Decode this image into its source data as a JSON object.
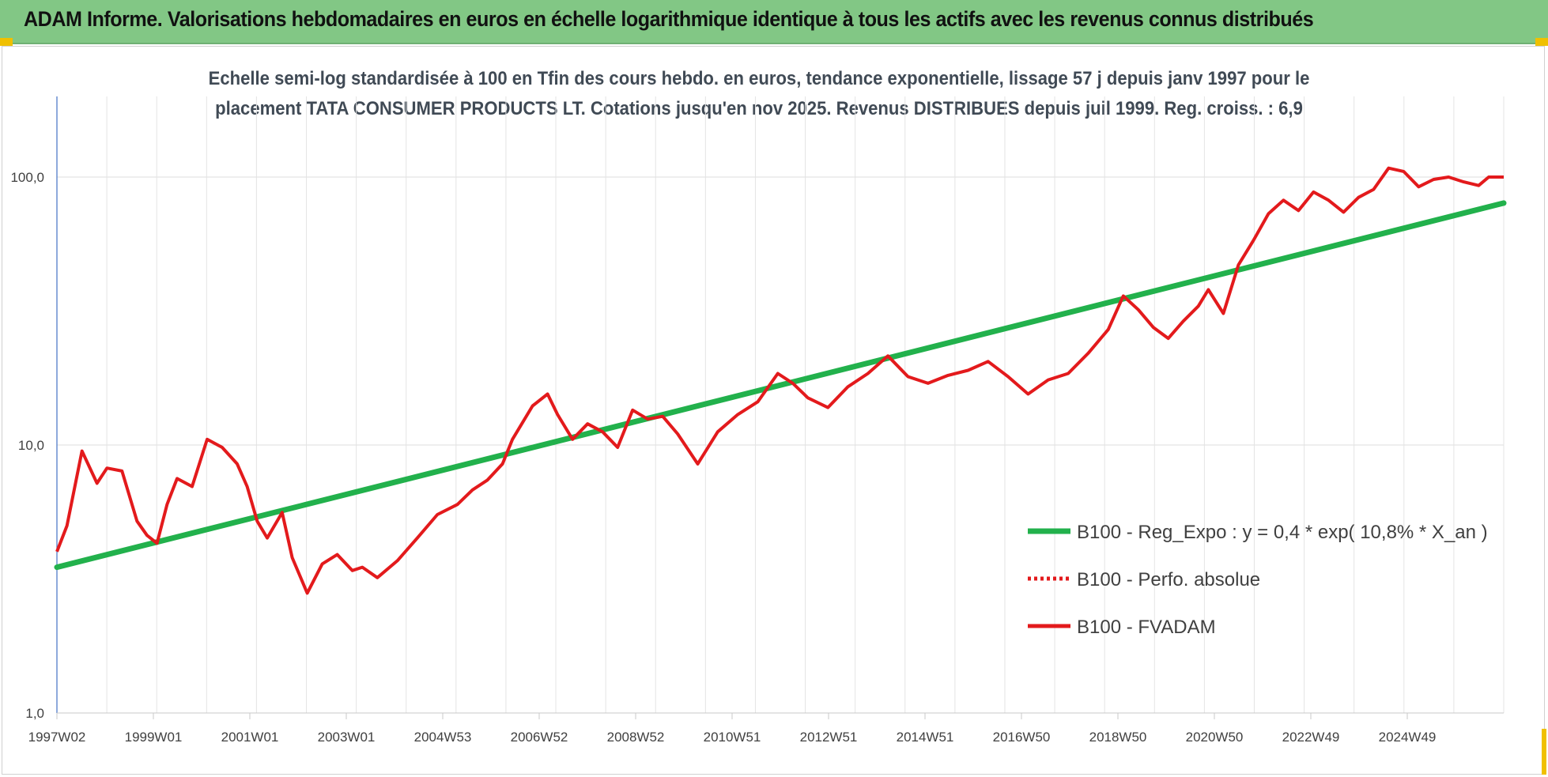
{
  "banner": {
    "title": "ADAM Informe. Valorisations hebdomadaires en euros en échelle logarithmique identique à tous les actifs avec les revenus connus distribués"
  },
  "chart_data": {
    "type": "line",
    "title": "Echelle semi-log standardisée à 100 en Tfin des cours hebdo. en euros, tendance exponentielle, lissage 57 j depuis janv 1997 pour le",
    "subtitle": "placement TATA CONSUMER PRODUCTS LT. Cotations jusqu'en nov 2025. Revenus DISTRIBUES depuis juil 1999. Reg. croiss. : 6,9",
    "xlabel": "",
    "ylabel": "",
    "yscale": "log",
    "ylim": [
      1,
      200
    ],
    "y_ticks": [
      "1,0",
      "10,0",
      "100,0"
    ],
    "x_ticks": [
      "1997W02",
      "1999W01",
      "2001W01",
      "2003W01",
      "2004W53",
      "2006W52",
      "2008W52",
      "2010W51",
      "2012W51",
      "2014W51",
      "2016W50",
      "2018W50",
      "2020W50",
      "2022W49",
      "2024W49"
    ],
    "grid": true,
    "legend_position": "lower-right",
    "series": [
      {
        "name": "B100 - Reg_Expo : y = 0,4 * exp( 10,8% * X_an )",
        "color": "#22b14c",
        "style": "solid",
        "x": [
          1997.0,
          2025.9
        ],
        "y": [
          3.5,
          80
        ]
      },
      {
        "name": "B100 - Perfo. absolue",
        "color": "#e31a1c",
        "style": "dotted",
        "x": [],
        "y": []
      },
      {
        "name": "B100 - FVADAM",
        "color": "#e31a1c",
        "style": "solid",
        "x": [
          1997.0,
          1997.2,
          1997.5,
          1997.8,
          1998.0,
          1998.3,
          1998.6,
          1998.8,
          1999.0,
          1999.2,
          1999.4,
          1999.7,
          2000.0,
          2000.3,
          2000.6,
          2000.8,
          2001.0,
          2001.2,
          2001.5,
          2001.7,
          2002.0,
          2002.3,
          2002.6,
          2002.9,
          2003.1,
          2003.4,
          2003.8,
          2004.2,
          2004.6,
          2005.0,
          2005.3,
          2005.6,
          2005.9,
          2006.1,
          2006.5,
          2006.8,
          2007.0,
          2007.3,
          2007.6,
          2007.9,
          2008.2,
          2008.5,
          2008.8,
          2009.1,
          2009.4,
          2009.8,
          2010.2,
          2010.6,
          2011.0,
          2011.4,
          2011.7,
          2012.0,
          2012.4,
          2012.8,
          2013.2,
          2013.6,
          2014.0,
          2014.4,
          2014.8,
          2015.2,
          2015.6,
          2016.0,
          2016.4,
          2016.8,
          2017.2,
          2017.6,
          2018.0,
          2018.3,
          2018.6,
          2018.9,
          2019.2,
          2019.5,
          2019.8,
          2020.0,
          2020.3,
          2020.6,
          2020.9,
          2021.2,
          2021.5,
          2021.8,
          2022.1,
          2022.4,
          2022.7,
          2023.0,
          2023.3,
          2023.6,
          2023.9,
          2024.2,
          2024.5,
          2024.8,
          2025.1,
          2025.4,
          2025.6,
          2025.9
        ],
        "y": [
          4.0,
          5.0,
          9.5,
          7.2,
          8.2,
          8.0,
          5.2,
          4.6,
          4.3,
          6.0,
          7.5,
          7.0,
          10.5,
          9.8,
          8.5,
          7.0,
          5.2,
          4.5,
          5.6,
          3.8,
          2.8,
          3.6,
          3.9,
          3.4,
          3.5,
          3.2,
          3.7,
          4.5,
          5.5,
          6.0,
          6.8,
          7.4,
          8.5,
          10.5,
          14.0,
          15.5,
          13.0,
          10.5,
          12.0,
          11.2,
          9.8,
          13.5,
          12.5,
          12.8,
          11.0,
          8.5,
          11.2,
          13.0,
          14.5,
          18.5,
          17.0,
          15.0,
          13.8,
          16.5,
          18.5,
          21.5,
          18.0,
          17.0,
          18.2,
          19.0,
          20.5,
          18.0,
          15.5,
          17.5,
          18.5,
          22.0,
          27.0,
          36.0,
          32.0,
          27.5,
          25.0,
          29.0,
          33.0,
          38.0,
          31.0,
          47.0,
          58.0,
          73.0,
          82.0,
          75.0,
          88.0,
          82.0,
          74.0,
          84.0,
          90.0,
          108.0,
          105.0,
          92.0,
          98.0,
          100.0,
          96.0,
          93.0,
          100.0,
          100.0
        ]
      }
    ]
  }
}
